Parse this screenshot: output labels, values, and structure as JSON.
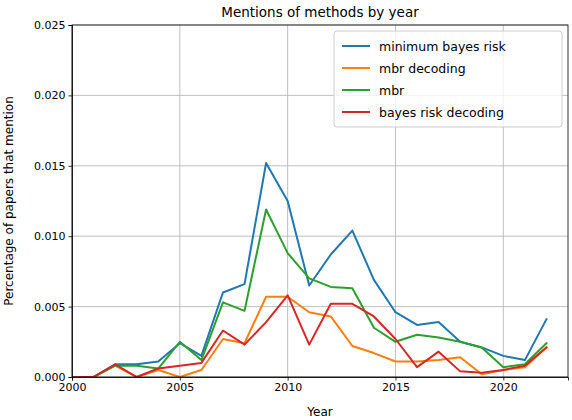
{
  "chart_data": {
    "type": "line",
    "title": "Mentions of methods by year",
    "x_label": "Year",
    "y_label": "Percentage of papers that mention",
    "x": [
      2000,
      2001,
      2002,
      2003,
      2004,
      2005,
      2006,
      2007,
      2008,
      2009,
      2010,
      2011,
      2012,
      2013,
      2014,
      2015,
      2016,
      2017,
      2018,
      2019,
      2020,
      2021,
      2022
    ],
    "series": [
      {
        "name": "minimum bayes risk",
        "color": "#1f77b4",
        "values": [
          0,
          0,
          0.0009,
          0.0009,
          0.0011,
          0.0024,
          0.0015,
          0.006,
          0.0066,
          0.0152,
          0.0125,
          0.0065,
          0.0087,
          0.0104,
          0.0069,
          0.0046,
          0.0037,
          0.0039,
          0.0025,
          0.0021,
          0.0015,
          0.0012,
          0.0041
        ]
      },
      {
        "name": "mbr decoding",
        "color": "#ff7f0e",
        "values": [
          0,
          0,
          0.0008,
          0,
          0.0005,
          0,
          0.0005,
          0.0027,
          0.0024,
          0.0057,
          0.0057,
          0.0046,
          0.0043,
          0.0022,
          0.0017,
          0.0011,
          0.0011,
          0.0012,
          0.0014,
          0.0002,
          0.0005,
          0.0007,
          0.0021
        ]
      },
      {
        "name": "mbr",
        "color": "#2ca02c",
        "values": [
          0,
          0,
          0.0008,
          0.0008,
          0.0006,
          0.0025,
          0.0012,
          0.0053,
          0.0047,
          0.0119,
          0.0088,
          0.007,
          0.0064,
          0.0063,
          0.0035,
          0.0025,
          0.003,
          0.0028,
          0.0025,
          0.0021,
          0.0007,
          0.0009,
          0.0024
        ]
      },
      {
        "name": "bayes risk decoding",
        "color": "#d62728",
        "values": [
          0,
          0,
          0.0009,
          0,
          0.0006,
          0.0008,
          0.001,
          0.0033,
          0.0023,
          0.0039,
          0.0058,
          0.0023,
          0.0052,
          0.0052,
          0.0043,
          0.0027,
          0.0007,
          0.0018,
          0.0004,
          0.0003,
          0.0005,
          0.0008,
          0.0021
        ]
      }
    ],
    "xlim": [
      2000,
      2023
    ],
    "xticks": [
      2000,
      2005,
      2010,
      2015,
      2020
    ],
    "ylim": [
      0,
      0.025
    ],
    "yticks": [
      {
        "value": 0,
        "label": "0.000"
      },
      {
        "value": 0.005,
        "label": "0.005"
      },
      {
        "value": 0.01,
        "label": "0.010"
      },
      {
        "value": 0.015,
        "label": "0.015"
      },
      {
        "value": 0.02,
        "label": "0.020"
      },
      {
        "value": 0.025,
        "label": "0.025"
      }
    ],
    "grid": true,
    "legend": "upper right"
  }
}
